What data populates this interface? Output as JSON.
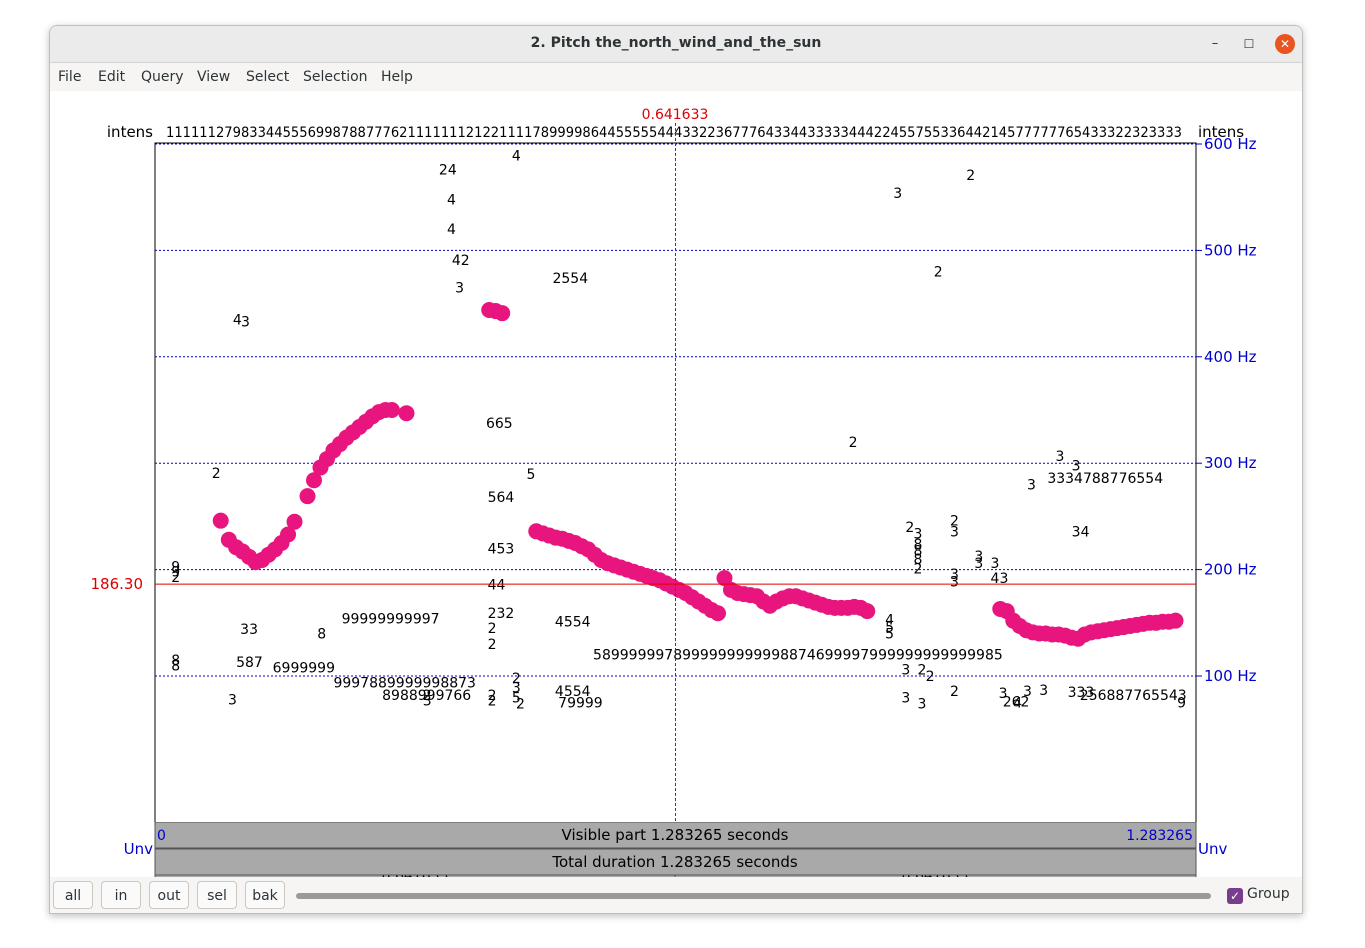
{
  "window": {
    "title": "2. Pitch the_north_wind_and_the_sun",
    "minimize_glyph": "–",
    "maximize_glyph": "☐",
    "close_glyph": "✕"
  },
  "menu": [
    "File",
    "Edit",
    "Query",
    "View",
    "Select",
    "Selection",
    "Help"
  ],
  "plot": {
    "cursor_time": "0.641633",
    "intens_label_left": "intens",
    "intens_label_right": "intens",
    "intens_string": "11111127983344555699878877762111111121221111789999864455555444332236777643344333334442245575533644214577777765433322323333",
    "y_axis_right": [
      {
        "label": "600 Hz",
        "hz": 600
      },
      {
        "label": "500 Hz",
        "hz": 500
      },
      {
        "label": "400 Hz",
        "hz": 400
      },
      {
        "label": "300 Hz",
        "hz": 300
      },
      {
        "label": "200 Hz",
        "hz": 200
      },
      {
        "label": "100 Hz",
        "hz": 100
      }
    ],
    "cursor_hz_label": "186.30",
    "cursor_hz": 186.3,
    "unv_label_left": "Unv",
    "unv_label_right": "Unv",
    "cursor_color": "#dd0000",
    "axis_color": "#0000cc",
    "track_color": "#e8157f",
    "voice_bar_color": "#0000cc",
    "unvoiced_segments_s": [
      [
        0.016,
        0.076
      ],
      [
        0.32,
        0.41
      ],
      [
        0.43,
        0.48
      ],
      [
        0.9,
        1.04
      ]
    ]
  },
  "time_panels": {
    "left_duration": "0.641633",
    "right_duration": "0.641633",
    "visible_start": "0",
    "visible_end": "1.283265",
    "visible_text": "Visible part 1.283265 seconds",
    "total_text": "Total duration 1.283265 seconds"
  },
  "toolbar": {
    "all": "all",
    "in": "in",
    "out": "out",
    "sel": "sel",
    "bak": "bak",
    "group_label": "Group",
    "group_checked": true
  },
  "chart_data": {
    "type": "scatter",
    "title": "",
    "xlabel": "",
    "ylabel": "",
    "xlim": [
      0,
      1.283265
    ],
    "ylim": [
      50,
      600
    ],
    "y_unit": "Hz",
    "pitch_track": [
      {
        "t": 0.081,
        "hz": 246
      },
      {
        "t": 0.091,
        "hz": 228
      },
      {
        "t": 0.1,
        "hz": 221
      },
      {
        "t": 0.108,
        "hz": 217
      },
      {
        "t": 0.116,
        "hz": 212
      },
      {
        "t": 0.124,
        "hz": 207
      },
      {
        "t": 0.132,
        "hz": 209
      },
      {
        "t": 0.14,
        "hz": 214
      },
      {
        "t": 0.148,
        "hz": 219
      },
      {
        "t": 0.156,
        "hz": 225
      },
      {
        "t": 0.164,
        "hz": 233
      },
      {
        "t": 0.172,
        "hz": 245
      },
      {
        "t": 0.188,
        "hz": 269
      },
      {
        "t": 0.196,
        "hz": 284
      },
      {
        "t": 0.204,
        "hz": 296
      },
      {
        "t": 0.212,
        "hz": 304
      },
      {
        "t": 0.22,
        "hz": 312
      },
      {
        "t": 0.228,
        "hz": 318
      },
      {
        "t": 0.236,
        "hz": 324
      },
      {
        "t": 0.244,
        "hz": 329
      },
      {
        "t": 0.252,
        "hz": 334
      },
      {
        "t": 0.26,
        "hz": 339
      },
      {
        "t": 0.268,
        "hz": 344
      },
      {
        "t": 0.276,
        "hz": 348
      },
      {
        "t": 0.284,
        "hz": 350
      },
      {
        "t": 0.292,
        "hz": 350
      },
      {
        "t": 0.31,
        "hz": 347
      },
      {
        "t": 0.412,
        "hz": 444
      },
      {
        "t": 0.42,
        "hz": 443
      },
      {
        "t": 0.428,
        "hz": 441
      },
      {
        "t": 0.47,
        "hz": 236
      },
      {
        "t": 0.478,
        "hz": 234
      },
      {
        "t": 0.486,
        "hz": 232
      },
      {
        "t": 0.494,
        "hz": 230
      },
      {
        "t": 0.502,
        "hz": 229
      },
      {
        "t": 0.51,
        "hz": 227
      },
      {
        "t": 0.518,
        "hz": 225
      },
      {
        "t": 0.526,
        "hz": 222
      },
      {
        "t": 0.534,
        "hz": 219
      },
      {
        "t": 0.542,
        "hz": 214
      },
      {
        "t": 0.55,
        "hz": 209
      },
      {
        "t": 0.558,
        "hz": 206
      },
      {
        "t": 0.566,
        "hz": 204
      },
      {
        "t": 0.574,
        "hz": 202
      },
      {
        "t": 0.582,
        "hz": 200
      },
      {
        "t": 0.59,
        "hz": 198
      },
      {
        "t": 0.598,
        "hz": 196
      },
      {
        "t": 0.606,
        "hz": 194
      },
      {
        "t": 0.614,
        "hz": 192
      },
      {
        "t": 0.622,
        "hz": 190
      },
      {
        "t": 0.63,
        "hz": 187
      },
      {
        "t": 0.638,
        "hz": 184
      },
      {
        "t": 0.646,
        "hz": 181
      },
      {
        "t": 0.654,
        "hz": 178
      },
      {
        "t": 0.662,
        "hz": 174
      },
      {
        "t": 0.67,
        "hz": 170
      },
      {
        "t": 0.678,
        "hz": 166
      },
      {
        "t": 0.686,
        "hz": 162
      },
      {
        "t": 0.694,
        "hz": 159
      },
      {
        "t": 0.702,
        "hz": 192
      },
      {
        "t": 0.71,
        "hz": 181
      },
      {
        "t": 0.718,
        "hz": 178
      },
      {
        "t": 0.726,
        "hz": 177
      },
      {
        "t": 0.734,
        "hz": 176
      },
      {
        "t": 0.742,
        "hz": 175
      },
      {
        "t": 0.75,
        "hz": 170
      },
      {
        "t": 0.758,
        "hz": 166
      },
      {
        "t": 0.766,
        "hz": 170
      },
      {
        "t": 0.774,
        "hz": 173
      },
      {
        "t": 0.782,
        "hz": 175
      },
      {
        "t": 0.79,
        "hz": 175
      },
      {
        "t": 0.798,
        "hz": 173
      },
      {
        "t": 0.806,
        "hz": 171
      },
      {
        "t": 0.814,
        "hz": 169
      },
      {
        "t": 0.822,
        "hz": 167
      },
      {
        "t": 0.83,
        "hz": 165
      },
      {
        "t": 0.838,
        "hz": 164
      },
      {
        "t": 0.846,
        "hz": 164
      },
      {
        "t": 0.854,
        "hz": 164
      },
      {
        "t": 0.862,
        "hz": 165
      },
      {
        "t": 0.87,
        "hz": 164
      },
      {
        "t": 0.878,
        "hz": 161
      },
      {
        "t": 1.042,
        "hz": 163
      },
      {
        "t": 1.05,
        "hz": 161
      },
      {
        "t": 1.058,
        "hz": 152
      },
      {
        "t": 1.066,
        "hz": 147
      },
      {
        "t": 1.074,
        "hz": 143
      },
      {
        "t": 1.082,
        "hz": 141
      },
      {
        "t": 1.09,
        "hz": 140
      },
      {
        "t": 1.098,
        "hz": 140
      },
      {
        "t": 1.106,
        "hz": 139
      },
      {
        "t": 1.114,
        "hz": 139
      },
      {
        "t": 1.122,
        "hz": 138
      },
      {
        "t": 1.13,
        "hz": 136
      },
      {
        "t": 1.138,
        "hz": 135
      },
      {
        "t": 1.146,
        "hz": 139
      },
      {
        "t": 1.154,
        "hz": 141
      },
      {
        "t": 1.162,
        "hz": 142
      },
      {
        "t": 1.17,
        "hz": 143
      },
      {
        "t": 1.178,
        "hz": 144
      },
      {
        "t": 1.186,
        "hz": 145
      },
      {
        "t": 1.194,
        "hz": 146
      },
      {
        "t": 1.202,
        "hz": 147
      },
      {
        "t": 1.21,
        "hz": 148
      },
      {
        "t": 1.218,
        "hz": 149
      },
      {
        "t": 1.226,
        "hz": 150
      },
      {
        "t": 1.234,
        "hz": 150
      },
      {
        "t": 1.242,
        "hz": 151
      },
      {
        "t": 1.25,
        "hz": 151
      },
      {
        "t": 1.258,
        "hz": 152
      }
    ],
    "candidates": [
      {
        "t": 0.096,
        "hz": 435,
        "label": "4"
      },
      {
        "t": 0.106,
        "hz": 433,
        "label": "3"
      },
      {
        "t": 0.07,
        "hz": 291,
        "label": "2"
      },
      {
        "t": 0.02,
        "hz": 203,
        "label": "9"
      },
      {
        "t": 0.02,
        "hz": 198,
        "label": "9"
      },
      {
        "t": 0.02,
        "hz": 193,
        "label": "2"
      },
      {
        "t": 0.105,
        "hz": 144,
        "label": "33"
      },
      {
        "t": 0.02,
        "hz": 115,
        "label": "8"
      },
      {
        "t": 0.02,
        "hz": 110,
        "label": "8"
      },
      {
        "t": 0.1,
        "hz": 113,
        "label": "587"
      },
      {
        "t": 0.145,
        "hz": 108,
        "label": "6999999"
      },
      {
        "t": 0.2,
        "hz": 140,
        "label": "8"
      },
      {
        "t": 0.23,
        "hz": 154,
        "label": "99999999997"
      },
      {
        "t": 0.22,
        "hz": 94,
        "label": "9997889999998873"
      },
      {
        "t": 0.09,
        "hz": 78,
        "label": "3"
      },
      {
        "t": 0.28,
        "hz": 82,
        "label": "8988999766"
      },
      {
        "t": 0.33,
        "hz": 82,
        "label": "2"
      },
      {
        "t": 0.33,
        "hz": 77,
        "label": "3"
      },
      {
        "t": 0.35,
        "hz": 576,
        "label": "24"
      },
      {
        "t": 0.36,
        "hz": 548,
        "label": "4"
      },
      {
        "t": 0.36,
        "hz": 520,
        "label": "4"
      },
      {
        "t": 0.366,
        "hz": 491,
        "label": "42"
      },
      {
        "t": 0.37,
        "hz": 465,
        "label": "3"
      },
      {
        "t": 0.44,
        "hz": 589,
        "label": "4"
      },
      {
        "t": 0.408,
        "hz": 338,
        "label": "665"
      },
      {
        "t": 0.458,
        "hz": 290,
        "label": "5"
      },
      {
        "t": 0.41,
        "hz": 268,
        "label": "564"
      },
      {
        "t": 0.41,
        "hz": 220,
        "label": "453"
      },
      {
        "t": 0.41,
        "hz": 186,
        "label": "44"
      },
      {
        "t": 0.41,
        "hz": 159,
        "label": "232"
      },
      {
        "t": 0.41,
        "hz": 145,
        "label": "2"
      },
      {
        "t": 0.41,
        "hz": 130,
        "label": "2"
      },
      {
        "t": 0.41,
        "hz": 82,
        "label": "2"
      },
      {
        "t": 0.41,
        "hz": 77,
        "label": "2"
      },
      {
        "t": 0.44,
        "hz": 98,
        "label": "2"
      },
      {
        "t": 0.44,
        "hz": 89,
        "label": "3"
      },
      {
        "t": 0.44,
        "hz": 80,
        "label": "5"
      },
      {
        "t": 0.445,
        "hz": 74,
        "label": "2"
      },
      {
        "t": 0.49,
        "hz": 474,
        "label": "2554"
      },
      {
        "t": 0.493,
        "hz": 151,
        "label": "4554"
      },
      {
        "t": 0.54,
        "hz": 120,
        "label": "5899999978999999999998874699997999999999999985"
      },
      {
        "t": 0.493,
        "hz": 86,
        "label": "4554"
      },
      {
        "t": 0.497,
        "hz": 75,
        "label": "79999"
      },
      {
        "t": 0.855,
        "hz": 320,
        "label": "2"
      },
      {
        "t": 0.91,
        "hz": 554,
        "label": "3"
      },
      {
        "t": 1.0,
        "hz": 571,
        "label": "2"
      },
      {
        "t": 0.96,
        "hz": 480,
        "label": "2"
      },
      {
        "t": 0.925,
        "hz": 240,
        "label": "2"
      },
      {
        "t": 0.935,
        "hz": 234,
        "label": "3"
      },
      {
        "t": 0.935,
        "hz": 224,
        "label": "8"
      },
      {
        "t": 0.935,
        "hz": 218,
        "label": "8"
      },
      {
        "t": 0.935,
        "hz": 210,
        "label": "8"
      },
      {
        "t": 0.935,
        "hz": 201,
        "label": "2"
      },
      {
        "t": 0.98,
        "hz": 246,
        "label": "2"
      },
      {
        "t": 0.98,
        "hz": 236,
        "label": "3"
      },
      {
        "t": 0.98,
        "hz": 196,
        "label": "3"
      },
      {
        "t": 0.98,
        "hz": 189,
        "label": "3"
      },
      {
        "t": 1.01,
        "hz": 213,
        "label": "3"
      },
      {
        "t": 1.01,
        "hz": 206,
        "label": "3"
      },
      {
        "t": 1.03,
        "hz": 206,
        "label": "3"
      },
      {
        "t": 1.03,
        "hz": 192,
        "label": "43"
      },
      {
        "t": 0.9,
        "hz": 153,
        "label": "4"
      },
      {
        "t": 0.9,
        "hz": 146,
        "label": "5"
      },
      {
        "t": 0.9,
        "hz": 140,
        "label": "5"
      },
      {
        "t": 0.92,
        "hz": 106,
        "label": "3"
      },
      {
        "t": 0.94,
        "hz": 106,
        "label": "2"
      },
      {
        "t": 0.95,
        "hz": 100,
        "label": "2"
      },
      {
        "t": 0.92,
        "hz": 80,
        "label": "3"
      },
      {
        "t": 0.94,
        "hz": 74,
        "label": "3"
      },
      {
        "t": 0.98,
        "hz": 86,
        "label": "2"
      },
      {
        "t": 1.04,
        "hz": 84,
        "label": "3"
      },
      {
        "t": 1.045,
        "hz": 76,
        "label": "262"
      },
      {
        "t": 1.058,
        "hz": 75,
        "label": "4"
      },
      {
        "t": 1.07,
        "hz": 86,
        "label": "3"
      },
      {
        "t": 1.09,
        "hz": 87,
        "label": "3"
      },
      {
        "t": 1.125,
        "hz": 85,
        "label": "333"
      },
      {
        "t": 1.14,
        "hz": 82,
        "label": "256887765543"
      },
      {
        "t": 1.075,
        "hz": 280,
        "label": "3"
      },
      {
        "t": 1.11,
        "hz": 307,
        "label": "3"
      },
      {
        "t": 1.1,
        "hz": 286,
        "label": "3334788776554"
      },
      {
        "t": 1.13,
        "hz": 298,
        "label": "3"
      },
      {
        "t": 1.13,
        "hz": 236,
        "label": "34"
      },
      {
        "t": 1.26,
        "hz": 75,
        "label": "9"
      }
    ]
  }
}
